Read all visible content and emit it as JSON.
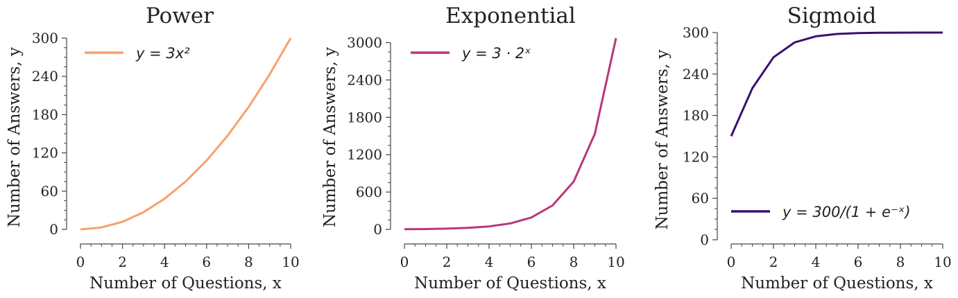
{
  "chart_data": [
    {
      "type": "line",
      "title": "Power",
      "xlabel": "Number of Questions, x",
      "ylabel": "Number of Answers, y",
      "xlim": [
        0,
        10
      ],
      "ylim": [
        0,
        300
      ],
      "xticks": [
        0,
        2,
        4,
        6,
        8,
        10
      ],
      "yticks": [
        0,
        60,
        120,
        180,
        240,
        300
      ],
      "legend_position": "top-left",
      "grid": false,
      "series": [
        {
          "name": "y = 3x²",
          "color": "#f8a06c",
          "x": [
            0,
            1,
            2,
            3,
            4,
            5,
            6,
            7,
            8,
            9,
            10
          ],
          "y": [
            0,
            3,
            12,
            27,
            48,
            75,
            108,
            147,
            192,
            243,
            300
          ]
        }
      ]
    },
    {
      "type": "line",
      "title": "Exponential",
      "xlabel": "Number of Questions, x",
      "ylabel": "Number of Answers, y",
      "xlim": [
        0,
        10
      ],
      "ylim": [
        0,
        3072
      ],
      "xticks": [
        0,
        2,
        4,
        6,
        8,
        10
      ],
      "yticks": [
        0,
        600,
        1200,
        1800,
        2400,
        3000
      ],
      "legend_position": "top-left",
      "grid": false,
      "series": [
        {
          "name": "y = 3 · 2ˣ",
          "color": "#b8377a",
          "x": [
            0,
            1,
            2,
            3,
            4,
            5,
            6,
            7,
            8,
            9,
            10
          ],
          "y": [
            3,
            6,
            12,
            24,
            48,
            96,
            192,
            384,
            768,
            1536,
            3072
          ]
        }
      ]
    },
    {
      "type": "line",
      "title": "Sigmoid",
      "xlabel": "Number of Questions, x",
      "ylabel": "Number of Answers, y",
      "xlim": [
        0,
        10
      ],
      "ylim": [
        0,
        300
      ],
      "xticks": [
        0,
        2,
        4,
        6,
        8,
        10
      ],
      "yticks": [
        0,
        60,
        120,
        180,
        240,
        300
      ],
      "legend_position": "lower-center",
      "grid": false,
      "series": [
        {
          "name": "y = 300/(1 + e⁻ˣ)",
          "color": "#3b0f70",
          "x": [
            0,
            1,
            2,
            3,
            4,
            5,
            6,
            7,
            8,
            9,
            10
          ],
          "y": [
            150,
            219.3,
            264.2,
            285.8,
            294.6,
            298.0,
            299.3,
            299.7,
            299.9,
            300.0,
            300.0
          ]
        }
      ]
    }
  ]
}
